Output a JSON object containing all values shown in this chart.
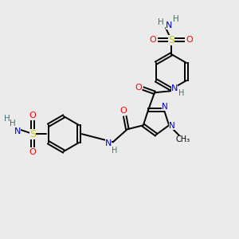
{
  "bg_color": "#ebebeb",
  "bond_color": "#000000",
  "colors": {
    "N": "#0000cc",
    "O": "#ff0000",
    "S": "#cccc00",
    "H": "#407070",
    "C": "#000000"
  },
  "figsize": [
    3.0,
    3.0
  ],
  "dpi": 100
}
